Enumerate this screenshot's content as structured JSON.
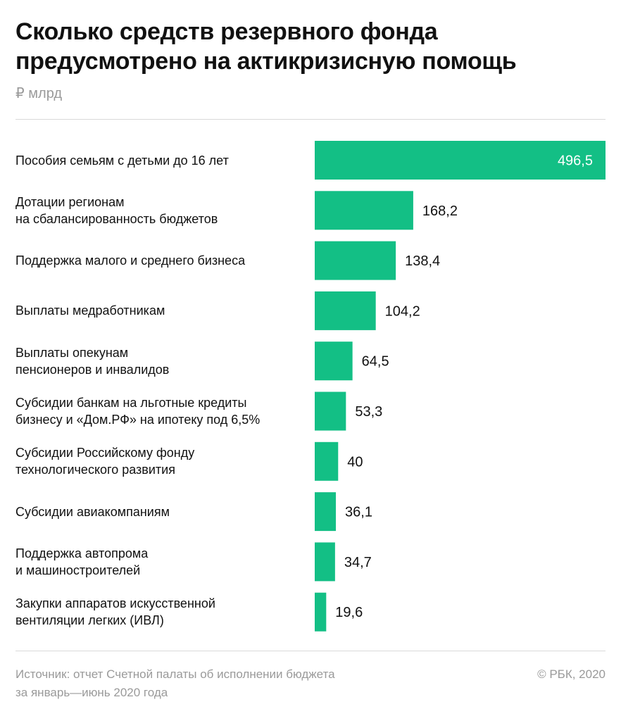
{
  "title": "Сколько средств резервного фонда\nпредусмотрено на актикризисную помощь",
  "unit": "₽ млрд",
  "chart_data": {
    "type": "bar",
    "orientation": "horizontal",
    "color": "#13bf85",
    "value_label_color_inside": "#ffffff",
    "value_label_color_outside": "#111111",
    "categories": [
      "Пособия семьям с детьми до 16 лет",
      "Дотации регионам\nна сбалансированность бюджетов",
      "Поддержка малого и среднего бизнеса",
      "Выплаты медработникам",
      "Выплаты опекунам\nпенсионеров и инвалидов",
      "Субсидии банкам на льготные кредиты\nбизнесу и «Дом.РФ» на ипотеку под 6,5%",
      "Субсидии Российскому фонду\nтехнологического развития",
      "Субсидии авиакомпаниям",
      "Поддержка автопрома\nи машиностроителей",
      "Закупки аппаратов искусственной\nвентиляции легких (ИВЛ)"
    ],
    "values": [
      496.5,
      168.2,
      138.4,
      104.2,
      64.5,
      53.3,
      40,
      36.1,
      34.7,
      19.6
    ],
    "value_labels": [
      "496,5",
      "168,2",
      "138,4",
      "104,2",
      "64,5",
      "53,3",
      "40",
      "36,1",
      "34,7",
      "19,6"
    ]
  },
  "footer": {
    "source": "Источник: отчет Счетной палаты об исполнении бюджета\nза январь—июнь 2020 года",
    "copyright": "© РБК, 2020"
  }
}
